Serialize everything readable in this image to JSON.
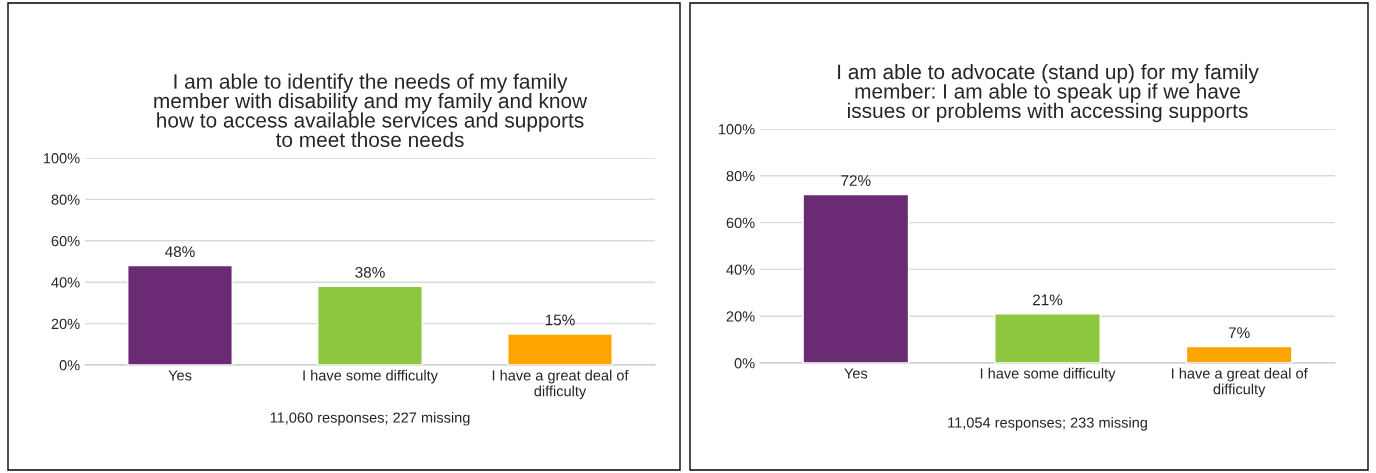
{
  "chart_data": [
    {
      "type": "bar",
      "title": "I am able to identify the needs of my family\nmember with disability and my family and know\nhow to access available services and supports\nto meet those needs",
      "categories": [
        "Yes",
        "I have some difficulty",
        "I have a great deal of\ndifficulty"
      ],
      "values": [
        48,
        38,
        15
      ],
      "colors": [
        "#6b2a74",
        "#8dc63f",
        "#ffa500"
      ],
      "value_labels": [
        "48%",
        "38%",
        "15%"
      ],
      "ylim": [
        0,
        100
      ],
      "yticks": [
        {
          "value": 0,
          "label": "0%"
        },
        {
          "value": 20,
          "label": "20%"
        },
        {
          "value": 40,
          "label": "40%"
        },
        {
          "value": 60,
          "label": "60%"
        },
        {
          "value": 80,
          "label": "80%"
        },
        {
          "value": 100,
          "label": "100%"
        }
      ],
      "grid": "y",
      "legend": false,
      "annotations": [
        "11,060 responses; 227 missing"
      ]
    },
    {
      "type": "bar",
      "title": "I am able to advocate (stand up) for my family\nmember: I am able to speak up if we have\nissues or problems with accessing supports",
      "categories": [
        "Yes",
        "I have some difficulty",
        "I have a great deal of\ndifficulty"
      ],
      "values": [
        72,
        21,
        7
      ],
      "colors": [
        "#6b2a74",
        "#8dc63f",
        "#ffa500"
      ],
      "value_labels": [
        "72%",
        "21%",
        "7%"
      ],
      "ylim": [
        0,
        100
      ],
      "yticks": [
        {
          "value": 0,
          "label": "0%"
        },
        {
          "value": 20,
          "label": "20%"
        },
        {
          "value": 40,
          "label": "40%"
        },
        {
          "value": 60,
          "label": "60%"
        },
        {
          "value": 80,
          "label": "80%"
        },
        {
          "value": 100,
          "label": "100%"
        }
      ],
      "grid": "y",
      "legend": false,
      "annotations": [
        "11,054 responses; 233 missing"
      ]
    }
  ]
}
